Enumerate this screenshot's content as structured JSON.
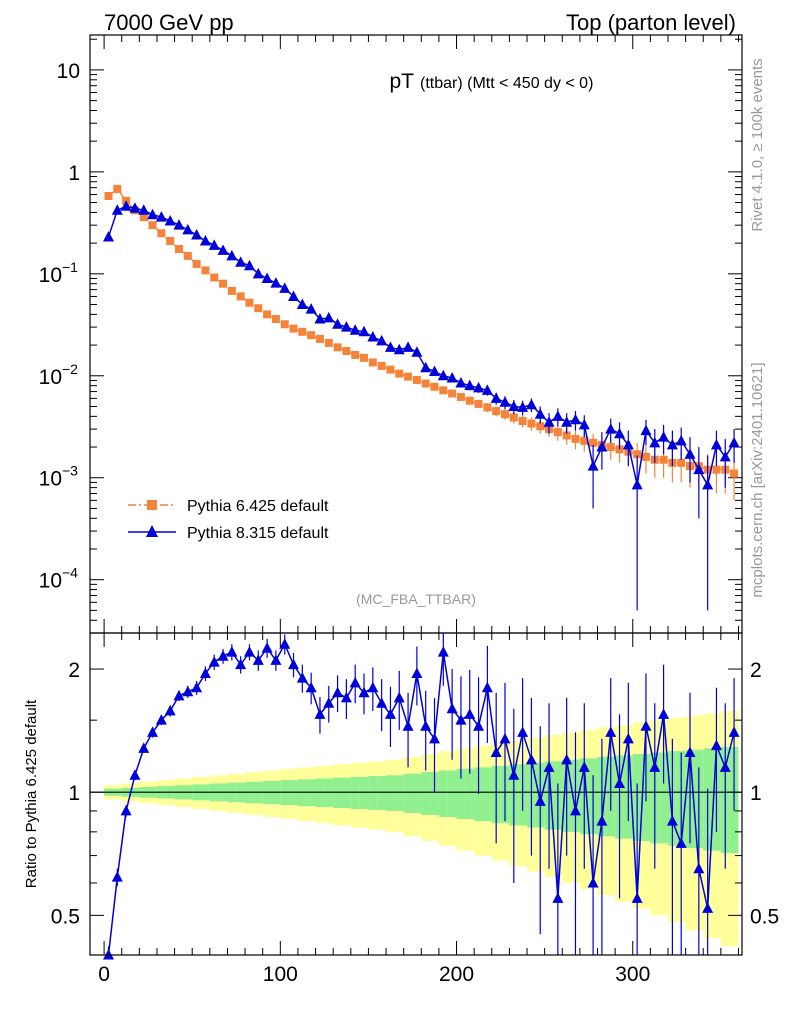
{
  "header": {
    "left": "7000 GeV pp",
    "right": "Top (parton level)"
  },
  "title": {
    "main": "pT",
    "sub": "(ttbar) (Mtt < 450 dy < 0)"
  },
  "analysis_tag": "(MC_FBA_TTBAR)",
  "side_labels": {
    "rivet": "Rivet 4.1.0, ≥ 100k events",
    "mcplots": "mcplots.cern.ch [arXiv:2401.10621]"
  },
  "colors": {
    "pythia6": "#f5843a",
    "pythia8": "#0000d8",
    "band_inner": "#90f090",
    "band_outer": "#ffff99"
  },
  "chart_data": [
    {
      "type": "line",
      "title": "pT (ttbar) (Mtt < 450 dy < 0)",
      "xlabel": "",
      "ylabel": "",
      "yscale": "log",
      "xlim": [
        -8,
        362
      ],
      "ylim": [
        3e-05,
        22
      ],
      "yticks": [
        {
          "value": 10,
          "label": "10"
        },
        {
          "value": 1,
          "label": "1"
        },
        {
          "value": 0.1,
          "label": "10",
          "exp": "−1"
        },
        {
          "value": 0.01,
          "label": "10",
          "exp": "−2"
        },
        {
          "value": 0.001,
          "label": "10",
          "exp": "−3"
        },
        {
          "value": 0.0001,
          "label": "10",
          "exp": "−4"
        }
      ],
      "legend": {
        "position": "lower-left",
        "entries": [
          "Pythia 6.425 default",
          "Pythia 8.315 default"
        ]
      },
      "series": [
        {
          "name": "Pythia 6.425 default",
          "marker": "square",
          "style": "dash-dot",
          "x": [
            2.5,
            7.5,
            12.5,
            17.5,
            22.5,
            27.5,
            32.5,
            37.5,
            42.5,
            47.5,
            52.5,
            57.5,
            62.5,
            67.5,
            72.5,
            77.5,
            82.5,
            87.5,
            92.5,
            97.5,
            102.5,
            107.5,
            112.5,
            117.5,
            122.5,
            127.5,
            132.5,
            137.5,
            142.5,
            147.5,
            152.5,
            157.5,
            162.5,
            167.5,
            172.5,
            177.5,
            182.5,
            187.5,
            192.5,
            197.5,
            202.5,
            207.5,
            212.5,
            217.5,
            222.5,
            227.5,
            232.5,
            237.5,
            242.5,
            247.5,
            252.5,
            257.5,
            262.5,
            267.5,
            272.5,
            277.5,
            282.5,
            287.5,
            292.5,
            297.5,
            302.5,
            307.5,
            312.5,
            317.5,
            322.5,
            327.5,
            332.5,
            337.5,
            342.5,
            347.5,
            352.5,
            357.5
          ],
          "values": [
            0.58,
            0.68,
            0.52,
            0.42,
            0.36,
            0.3,
            0.25,
            0.21,
            0.175,
            0.15,
            0.125,
            0.108,
            0.092,
            0.08,
            0.068,
            0.06,
            0.052,
            0.046,
            0.04,
            0.036,
            0.032,
            0.029,
            0.027,
            0.025,
            0.023,
            0.021,
            0.019,
            0.0175,
            0.016,
            0.015,
            0.0135,
            0.0125,
            0.0115,
            0.0105,
            0.0098,
            0.0091,
            0.0084,
            0.0078,
            0.0072,
            0.0067,
            0.0062,
            0.0057,
            0.0053,
            0.0049,
            0.0045,
            0.0042,
            0.0039,
            0.0036,
            0.0034,
            0.0032,
            0.003,
            0.0028,
            0.0026,
            0.0024,
            0.0023,
            0.0022,
            0.0021,
            0.002,
            0.0019,
            0.0018,
            0.0017,
            0.0016,
            0.0015,
            0.0015,
            0.0014,
            0.0014,
            0.0013,
            0.0013,
            0.0012,
            0.0012,
            0.0012,
            0.0011
          ],
          "errors": [
            0.02,
            0.02,
            0.015,
            0.012,
            0.01,
            0.008,
            0.007,
            0.006,
            0.005,
            0.004,
            0.0035,
            0.003,
            0.0028,
            0.0025,
            0.0022,
            0.002,
            0.0018,
            0.0016,
            0.0014,
            0.0013,
            0.0012,
            0.0011,
            0.001,
            0.001,
            0.0009,
            0.0009,
            0.0008,
            0.0008,
            0.0007,
            0.0007,
            0.0007,
            0.0006,
            0.0006,
            0.0006,
            0.0006,
            0.0005,
            0.0005,
            0.0005,
            0.0005,
            0.0005,
            0.0005,
            0.0005,
            0.0005,
            0.0005,
            0.0005,
            0.0005,
            0.0005,
            0.0005,
            0.0005,
            0.0005,
            0.0005,
            0.0005,
            0.0005,
            0.0005,
            0.0005,
            0.0005,
            0.0005,
            0.0005,
            0.0005,
            0.0005,
            0.0005,
            0.0005,
            0.0005,
            0.0005,
            0.0005,
            0.0005,
            0.0005,
            0.0005,
            0.0005,
            0.0005,
            0.0005,
            0.0005
          ]
        },
        {
          "name": "Pythia 8.315 default",
          "marker": "triangle",
          "style": "solid",
          "x": [
            2.5,
            7.5,
            12.5,
            17.5,
            22.5,
            27.5,
            32.5,
            37.5,
            42.5,
            47.5,
            52.5,
            57.5,
            62.5,
            67.5,
            72.5,
            77.5,
            82.5,
            87.5,
            92.5,
            97.5,
            102.5,
            107.5,
            112.5,
            117.5,
            122.5,
            127.5,
            132.5,
            137.5,
            142.5,
            147.5,
            152.5,
            157.5,
            162.5,
            167.5,
            172.5,
            177.5,
            182.5,
            187.5,
            192.5,
            197.5,
            202.5,
            207.5,
            212.5,
            217.5,
            222.5,
            227.5,
            232.5,
            237.5,
            242.5,
            247.5,
            252.5,
            257.5,
            262.5,
            267.5,
            272.5,
            277.5,
            282.5,
            287.5,
            292.5,
            297.5,
            302.5,
            307.5,
            312.5,
            317.5,
            322.5,
            327.5,
            332.5,
            337.5,
            342.5,
            347.5,
            352.5,
            357.5
          ],
          "values": [
            0.23,
            0.42,
            0.46,
            0.44,
            0.42,
            0.38,
            0.36,
            0.33,
            0.3,
            0.27,
            0.24,
            0.21,
            0.19,
            0.17,
            0.15,
            0.13,
            0.12,
            0.1,
            0.09,
            0.081,
            0.072,
            0.06,
            0.05,
            0.045,
            0.036,
            0.037,
            0.032,
            0.03,
            0.028,
            0.027,
            0.024,
            0.022,
            0.019,
            0.018,
            0.019,
            0.017,
            0.012,
            0.011,
            0.01,
            0.0095,
            0.0085,
            0.008,
            0.0076,
            0.0072,
            0.006,
            0.0055,
            0.005,
            0.0049,
            0.0052,
            0.0042,
            0.0035,
            0.004,
            0.0035,
            0.0037,
            0.0033,
            0.0013,
            0.002,
            0.003,
            0.0027,
            0.0021,
            0.00085,
            0.0029,
            0.0022,
            0.0025,
            0.0021,
            0.0023,
            0.0017,
            0.0012,
            0.00085,
            0.0021,
            0.0016,
            0.0022
          ],
          "errors": [
            0.01,
            0.012,
            0.012,
            0.011,
            0.01,
            0.009,
            0.009,
            0.008,
            0.007,
            0.007,
            0.006,
            0.005,
            0.005,
            0.004,
            0.004,
            0.0035,
            0.003,
            0.003,
            0.0025,
            0.0022,
            0.002,
            0.0018,
            0.0016,
            0.0015,
            0.0013,
            0.0013,
            0.0012,
            0.0011,
            0.0011,
            0.001,
            0.001,
            0.001,
            0.0009,
            0.0009,
            0.0009,
            0.0009,
            0.0008,
            0.0008,
            0.0008,
            0.0008,
            0.0008,
            0.0008,
            0.0008,
            0.0008,
            0.0008,
            0.0008,
            0.0008,
            0.0008,
            0.0008,
            0.0008,
            0.0008,
            0.0008,
            0.0008,
            0.0008,
            0.0008,
            0.0008,
            0.0008,
            0.0008,
            0.0008,
            0.0008,
            0.0008,
            0.0008,
            0.0008,
            0.0008,
            0.0008,
            0.0008,
            0.0008,
            0.0008,
            0.0008,
            0.0008,
            0.0008,
            0.0008
          ]
        }
      ]
    },
    {
      "type": "line",
      "title": "",
      "xlabel": "",
      "ylabel": "Ratio to Pythia 6.425 default",
      "yscale": "log",
      "xlim": [
        -8,
        362
      ],
      "ylim": [
        0.4,
        2.45
      ],
      "yticks": [
        {
          "value": 2,
          "label": "2"
        },
        {
          "value": 1,
          "label": "1"
        },
        {
          "value": 0.5,
          "label": "0.5"
        }
      ],
      "xticks": [
        {
          "value": 0,
          "label": "0"
        },
        {
          "value": 100,
          "label": "100"
        },
        {
          "value": 200,
          "label": "200"
        },
        {
          "value": 300,
          "label": "300"
        }
      ],
      "reference_line": 1,
      "band": {
        "x": [
          2.5,
          7.5,
          12.5,
          17.5,
          22.5,
          27.5,
          32.5,
          37.5,
          42.5,
          47.5,
          52.5,
          57.5,
          62.5,
          67.5,
          72.5,
          77.5,
          82.5,
          87.5,
          92.5,
          97.5,
          102.5,
          107.5,
          112.5,
          117.5,
          122.5,
          127.5,
          132.5,
          137.5,
          142.5,
          147.5,
          152.5,
          157.5,
          162.5,
          167.5,
          172.5,
          177.5,
          182.5,
          187.5,
          192.5,
          197.5,
          202.5,
          207.5,
          212.5,
          217.5,
          222.5,
          227.5,
          232.5,
          237.5,
          242.5,
          247.5,
          252.5,
          257.5,
          262.5,
          267.5,
          272.5,
          277.5,
          282.5,
          287.5,
          292.5,
          297.5,
          302.5,
          307.5,
          312.5,
          317.5,
          322.5,
          327.5,
          332.5,
          337.5,
          342.5,
          347.5,
          352.5,
          357.5
        ],
        "inner": [
          0.02,
          0.02,
          0.025,
          0.025,
          0.03,
          0.03,
          0.035,
          0.035,
          0.04,
          0.04,
          0.045,
          0.045,
          0.05,
          0.05,
          0.055,
          0.055,
          0.06,
          0.06,
          0.065,
          0.065,
          0.07,
          0.07,
          0.075,
          0.075,
          0.08,
          0.08,
          0.085,
          0.085,
          0.09,
          0.09,
          0.095,
          0.095,
          0.1,
          0.1,
          0.11,
          0.11,
          0.12,
          0.12,
          0.13,
          0.13,
          0.14,
          0.14,
          0.15,
          0.15,
          0.16,
          0.16,
          0.17,
          0.17,
          0.18,
          0.18,
          0.19,
          0.19,
          0.2,
          0.2,
          0.21,
          0.21,
          0.22,
          0.22,
          0.23,
          0.23,
          0.24,
          0.24,
          0.25,
          0.25,
          0.26,
          0.26,
          0.27,
          0.27,
          0.28,
          0.28,
          0.29,
          0.29
        ],
        "outer": [
          0.04,
          0.04,
          0.05,
          0.05,
          0.06,
          0.06,
          0.07,
          0.07,
          0.08,
          0.08,
          0.09,
          0.09,
          0.1,
          0.1,
          0.11,
          0.11,
          0.12,
          0.12,
          0.13,
          0.13,
          0.14,
          0.14,
          0.15,
          0.15,
          0.16,
          0.16,
          0.17,
          0.17,
          0.18,
          0.18,
          0.19,
          0.19,
          0.2,
          0.2,
          0.22,
          0.22,
          0.24,
          0.24,
          0.26,
          0.26,
          0.28,
          0.28,
          0.3,
          0.3,
          0.32,
          0.32,
          0.34,
          0.34,
          0.36,
          0.36,
          0.38,
          0.38,
          0.4,
          0.4,
          0.42,
          0.42,
          0.44,
          0.44,
          0.46,
          0.46,
          0.48,
          0.48,
          0.5,
          0.5,
          0.52,
          0.52,
          0.54,
          0.54,
          0.56,
          0.56,
          0.58,
          0.58
        ]
      },
      "series": [
        {
          "name": "Pythia 8.315 default",
          "marker": "triangle",
          "style": "solid",
          "x": [
            2.5,
            7.5,
            12.5,
            17.5,
            22.5,
            27.5,
            32.5,
            37.5,
            42.5,
            47.5,
            52.5,
            57.5,
            62.5,
            67.5,
            72.5,
            77.5,
            82.5,
            87.5,
            92.5,
            97.5,
            102.5,
            107.5,
            112.5,
            117.5,
            122.5,
            127.5,
            132.5,
            137.5,
            142.5,
            147.5,
            152.5,
            157.5,
            162.5,
            167.5,
            172.5,
            177.5,
            182.5,
            187.5,
            192.5,
            197.5,
            202.5,
            207.5,
            212.5,
            217.5,
            222.5,
            227.5,
            232.5,
            237.5,
            242.5,
            247.5,
            252.5,
            257.5,
            262.5,
            267.5,
            272.5,
            277.5,
            282.5,
            287.5,
            292.5,
            297.5,
            302.5,
            307.5,
            312.5,
            317.5,
            322.5,
            327.5,
            332.5,
            337.5,
            342.5,
            347.5,
            352.5,
            357.5
          ],
          "values": [
            0.4,
            0.62,
            0.9,
            1.1,
            1.28,
            1.4,
            1.5,
            1.58,
            1.72,
            1.76,
            1.8,
            1.95,
            2.08,
            2.15,
            2.2,
            2.05,
            2.2,
            2.1,
            2.25,
            2.1,
            2.3,
            2.05,
            1.9,
            1.8,
            1.55,
            1.65,
            1.75,
            1.7,
            1.85,
            1.75,
            1.8,
            1.65,
            1.55,
            1.7,
            1.45,
            1.95,
            1.45,
            1.35,
            2.2,
            1.6,
            1.5,
            1.55,
            1.45,
            1.8,
            1.25,
            1.35,
            1.1,
            1.4,
            1.2,
            0.95,
            1.15,
            0.55,
            1.2,
            0.9,
            1.15,
            0.6,
            0.85,
            1.4,
            1.05,
            1.35,
            0.55,
            1.45,
            1.15,
            1.55,
            0.85,
            0.75,
            1.25,
            0.65,
            0.52,
            1.3,
            1.15,
            1.4
          ],
          "errors": [
            0.02,
            0.03,
            0.03,
            0.03,
            0.03,
            0.04,
            0.04,
            0.05,
            0.05,
            0.06,
            0.07,
            0.08,
            0.09,
            0.09,
            0.1,
            0.1,
            0.1,
            0.12,
            0.12,
            0.12,
            0.13,
            0.14,
            0.15,
            0.16,
            0.16,
            0.17,
            0.18,
            0.19,
            0.2,
            0.2,
            0.22,
            0.24,
            0.26,
            0.28,
            0.3,
            0.32,
            0.32,
            0.35,
            0.38,
            0.4,
            0.42,
            0.44,
            0.46,
            0.48,
            0.5,
            0.5,
            0.5,
            0.5,
            0.5,
            0.5,
            0.5,
            0.5,
            0.5,
            0.5,
            0.5,
            0.5,
            0.5,
            0.5,
            0.5,
            0.5,
            0.5,
            0.5,
            0.5,
            0.5,
            0.5,
            0.5,
            0.5,
            0.5,
            0.5,
            0.5,
            0.5,
            0.5
          ]
        }
      ]
    }
  ]
}
